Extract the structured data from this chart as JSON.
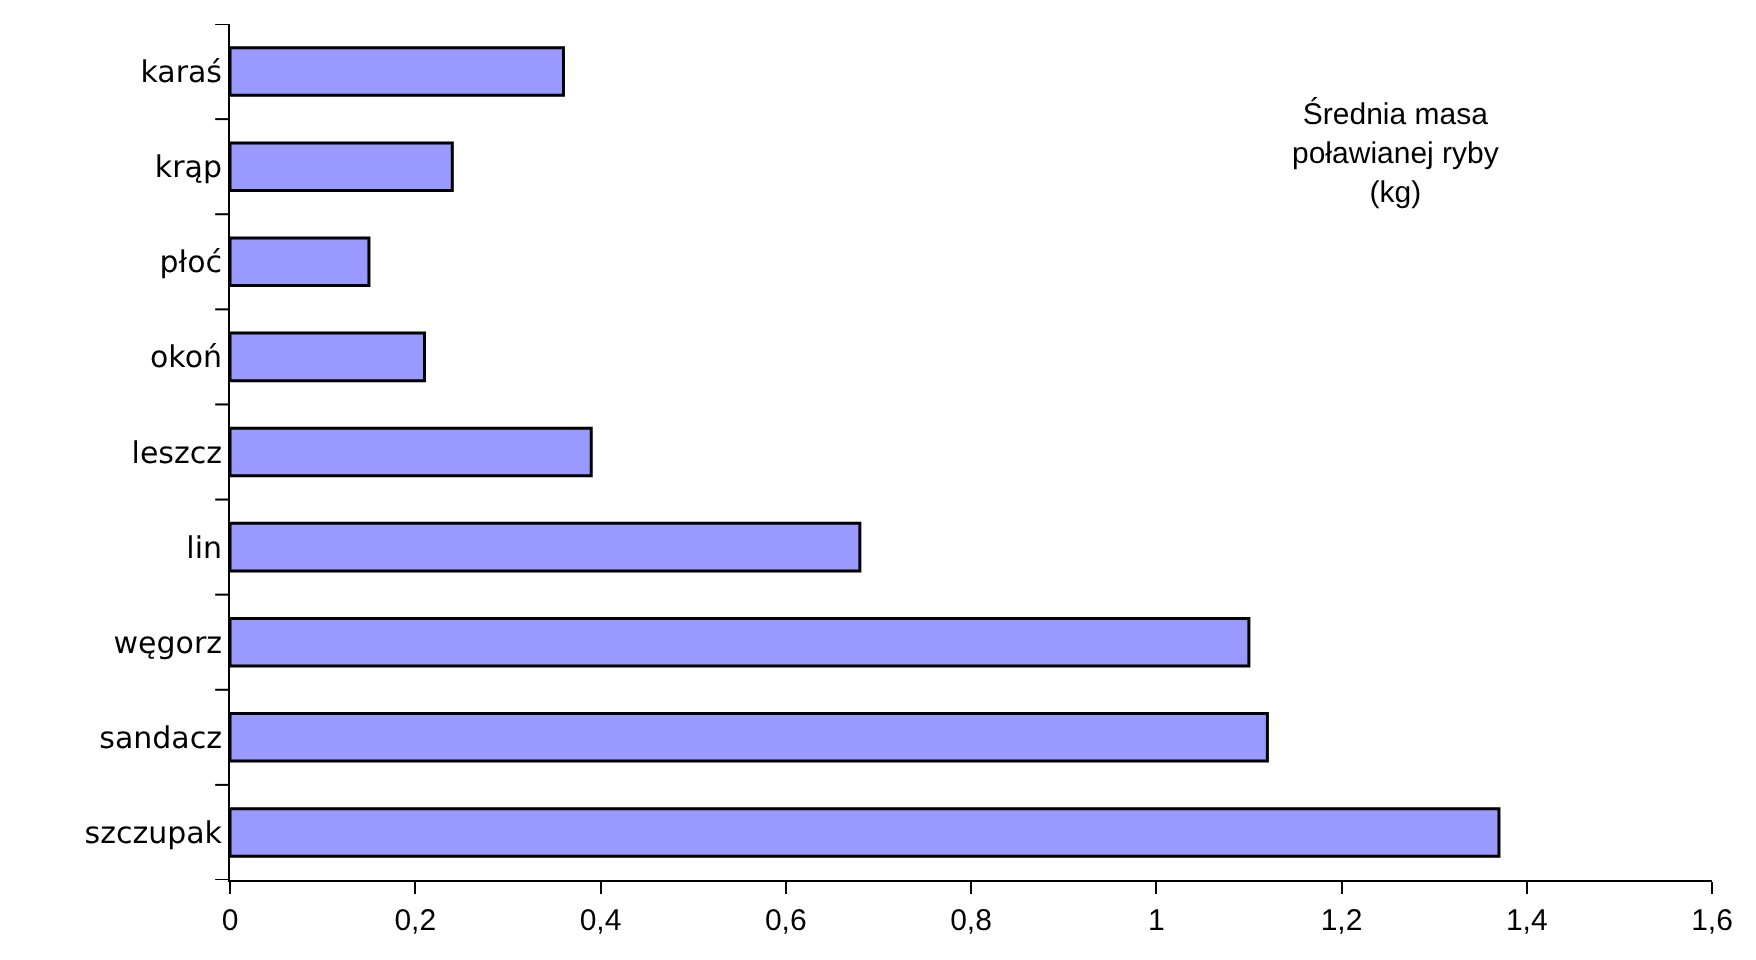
{
  "chart_data": {
    "type": "bar",
    "orientation": "horizontal",
    "annotations": [
      "Średnia masa\npoławianej ryby\n(kg)"
    ],
    "categories": [
      "karaś",
      "krąp",
      "płoć",
      "okoń",
      "leszcz",
      "lin",
      "węgorz",
      "sandacz",
      "szczupak"
    ],
    "values": [
      0.36,
      0.24,
      0.15,
      0.21,
      0.39,
      0.68,
      1.1,
      1.12,
      1.37
    ],
    "color": "#9999ff",
    "xlim": [
      0,
      1.6
    ],
    "xticks": [
      0,
      {
        "value": 0.2,
        "label": "0,2"
      },
      {
        "value": 0.4,
        "label": "0,4"
      },
      {
        "value": 0.6,
        "label": "0,6"
      },
      {
        "value": 0.8,
        "label": "0,8"
      },
      1,
      {
        "value": 1.2,
        "label": "1,2"
      },
      {
        "value": 1.4,
        "label": "1,4"
      },
      {
        "value": 1.6,
        "label": "1,6"
      }
    ],
    "grid": false
  }
}
